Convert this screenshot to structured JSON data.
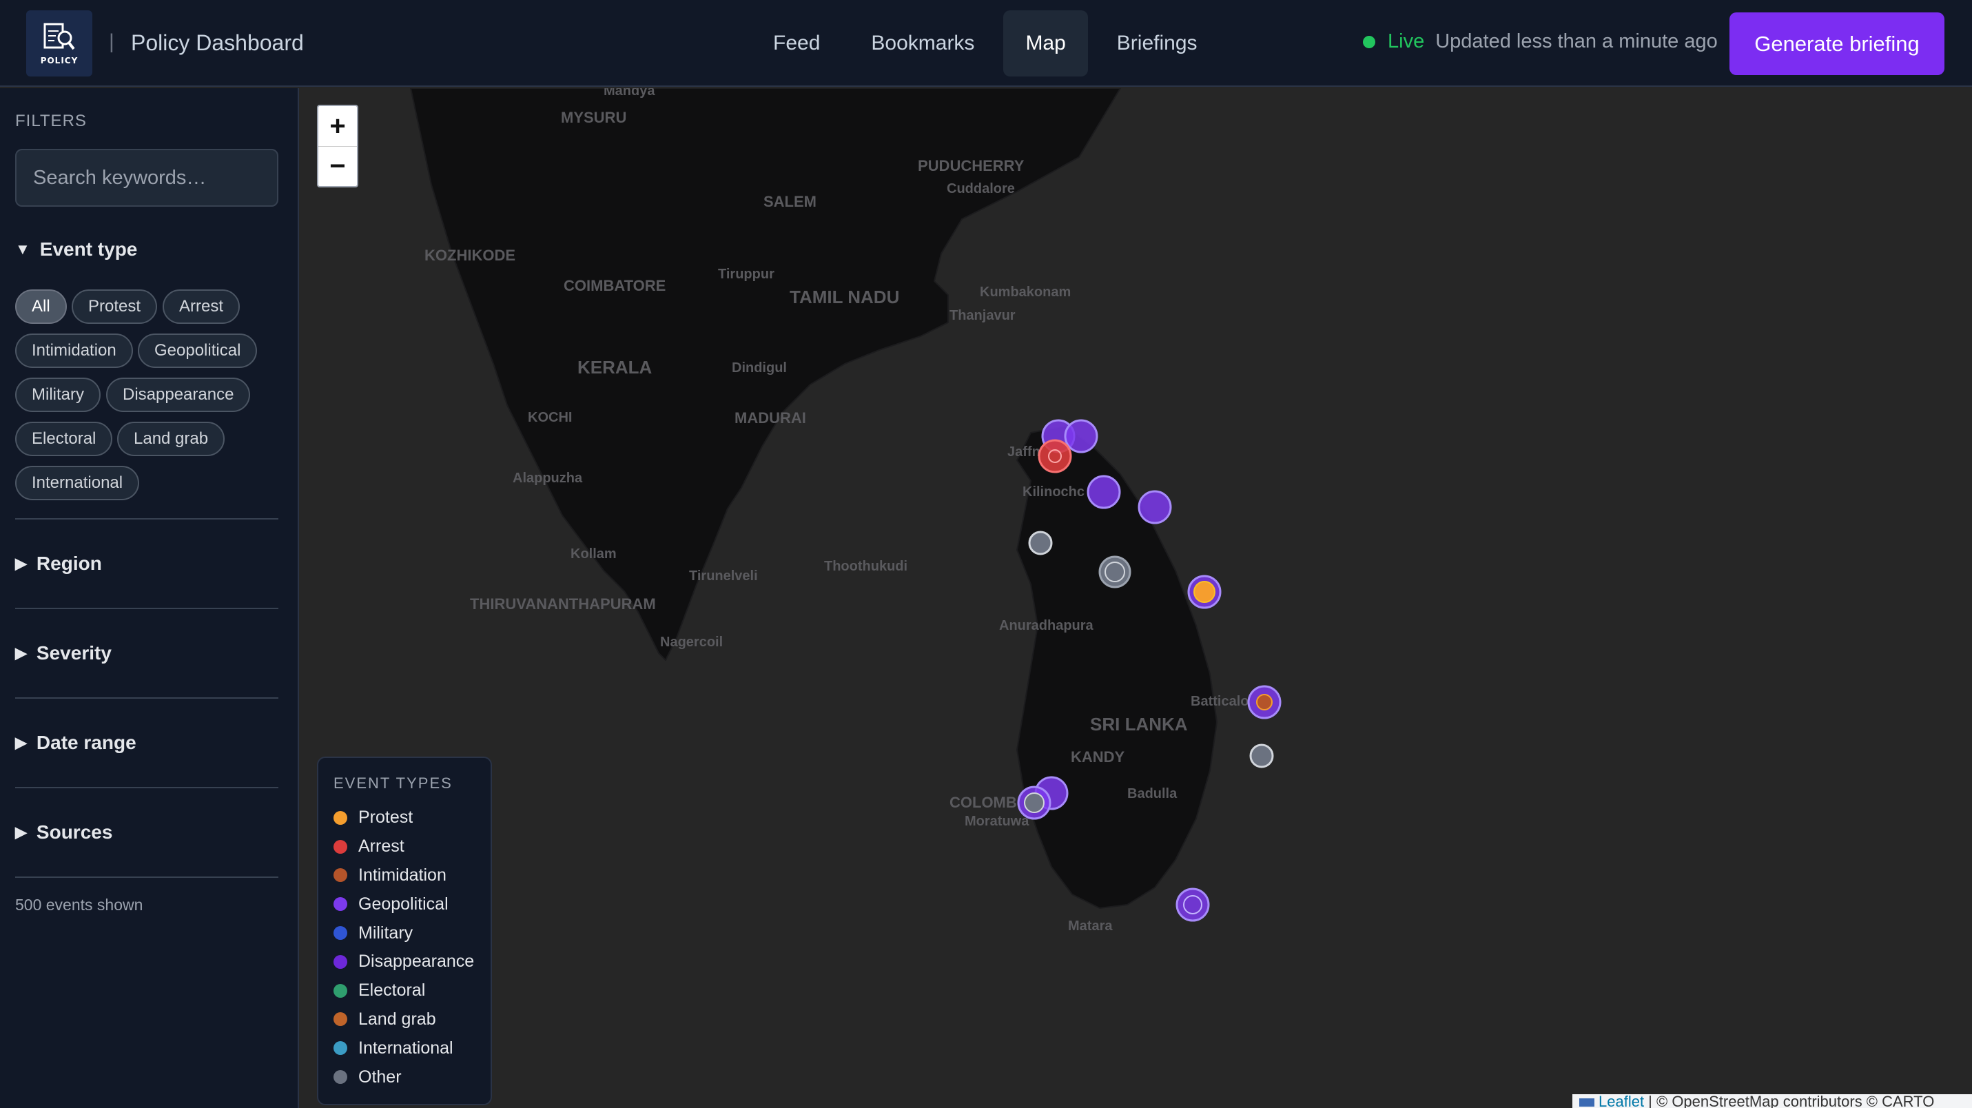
{
  "header": {
    "logo_text": "POLICY",
    "separator": "|",
    "title": "Policy Dashboard",
    "tabs": [
      {
        "label": "Feed",
        "active": false
      },
      {
        "label": "Bookmarks",
        "active": false
      },
      {
        "label": "Map",
        "active": true
      },
      {
        "label": "Briefings",
        "active": false
      }
    ],
    "live_label": "Live",
    "updated_text": "Updated less than a minute ago",
    "generate_button": "Generate briefing"
  },
  "sidebar": {
    "filters_heading": "FILTERS",
    "search_placeholder": "Search keywords…",
    "event_type_heading": "Event type",
    "event_type_chips": [
      "All",
      "Protest",
      "Arrest",
      "Intimidation",
      "Geopolitical",
      "Military",
      "Disappearance",
      "Electoral",
      "Land grab",
      "International"
    ],
    "active_chip": "All",
    "sections": [
      "Region",
      "Severity",
      "Date range",
      "Sources"
    ],
    "events_shown": "500 events shown"
  },
  "map": {
    "zoom_in": "+",
    "zoom_out": "−",
    "place_labels": [
      "Mandya",
      "MYSURU",
      "PUDUCHERRY",
      "Cuddalore",
      "SALEM",
      "KOZHIKODE",
      "Tiruppur",
      "COIMBATORE",
      "Kumbakonam",
      "TAMIL NADU",
      "Thanjavur",
      "KERALA",
      "Dindigul",
      "KOCHI",
      "MADURAI",
      "Jaffn",
      "Alappuzha",
      "Kilinochc",
      "Kollam",
      "Tirunelveli",
      "Thoothukudi",
      "THIRUVANANTHAPURAM",
      "Anuradhapura",
      "Nagercoil",
      "Batticalo",
      "SRI LANKA",
      "KANDY",
      "Badulla",
      "COLOMB",
      "Moratuwa",
      "Matara"
    ],
    "legend": {
      "title": "EVENT TYPES",
      "items": [
        {
          "label": "Protest",
          "color": "#f59e2e"
        },
        {
          "label": "Arrest",
          "color": "#dc3c3c"
        },
        {
          "label": "Intimidation",
          "color": "#b4542a"
        },
        {
          "label": "Geopolitical",
          "color": "#7c3aed"
        },
        {
          "label": "Military",
          "color": "#2f55d4"
        },
        {
          "label": "Disappearance",
          "color": "#6d28d9"
        },
        {
          "label": "Electoral",
          "color": "#2f9e6e"
        },
        {
          "label": "Land grab",
          "color": "#c0642a"
        },
        {
          "label": "International",
          "color": "#3b9cc4"
        },
        {
          "label": "Other",
          "color": "#6b7280"
        }
      ]
    },
    "attribution": {
      "leaflet": "Leaflet",
      "text": " | © OpenStreetMap contributors © CARTO"
    }
  }
}
